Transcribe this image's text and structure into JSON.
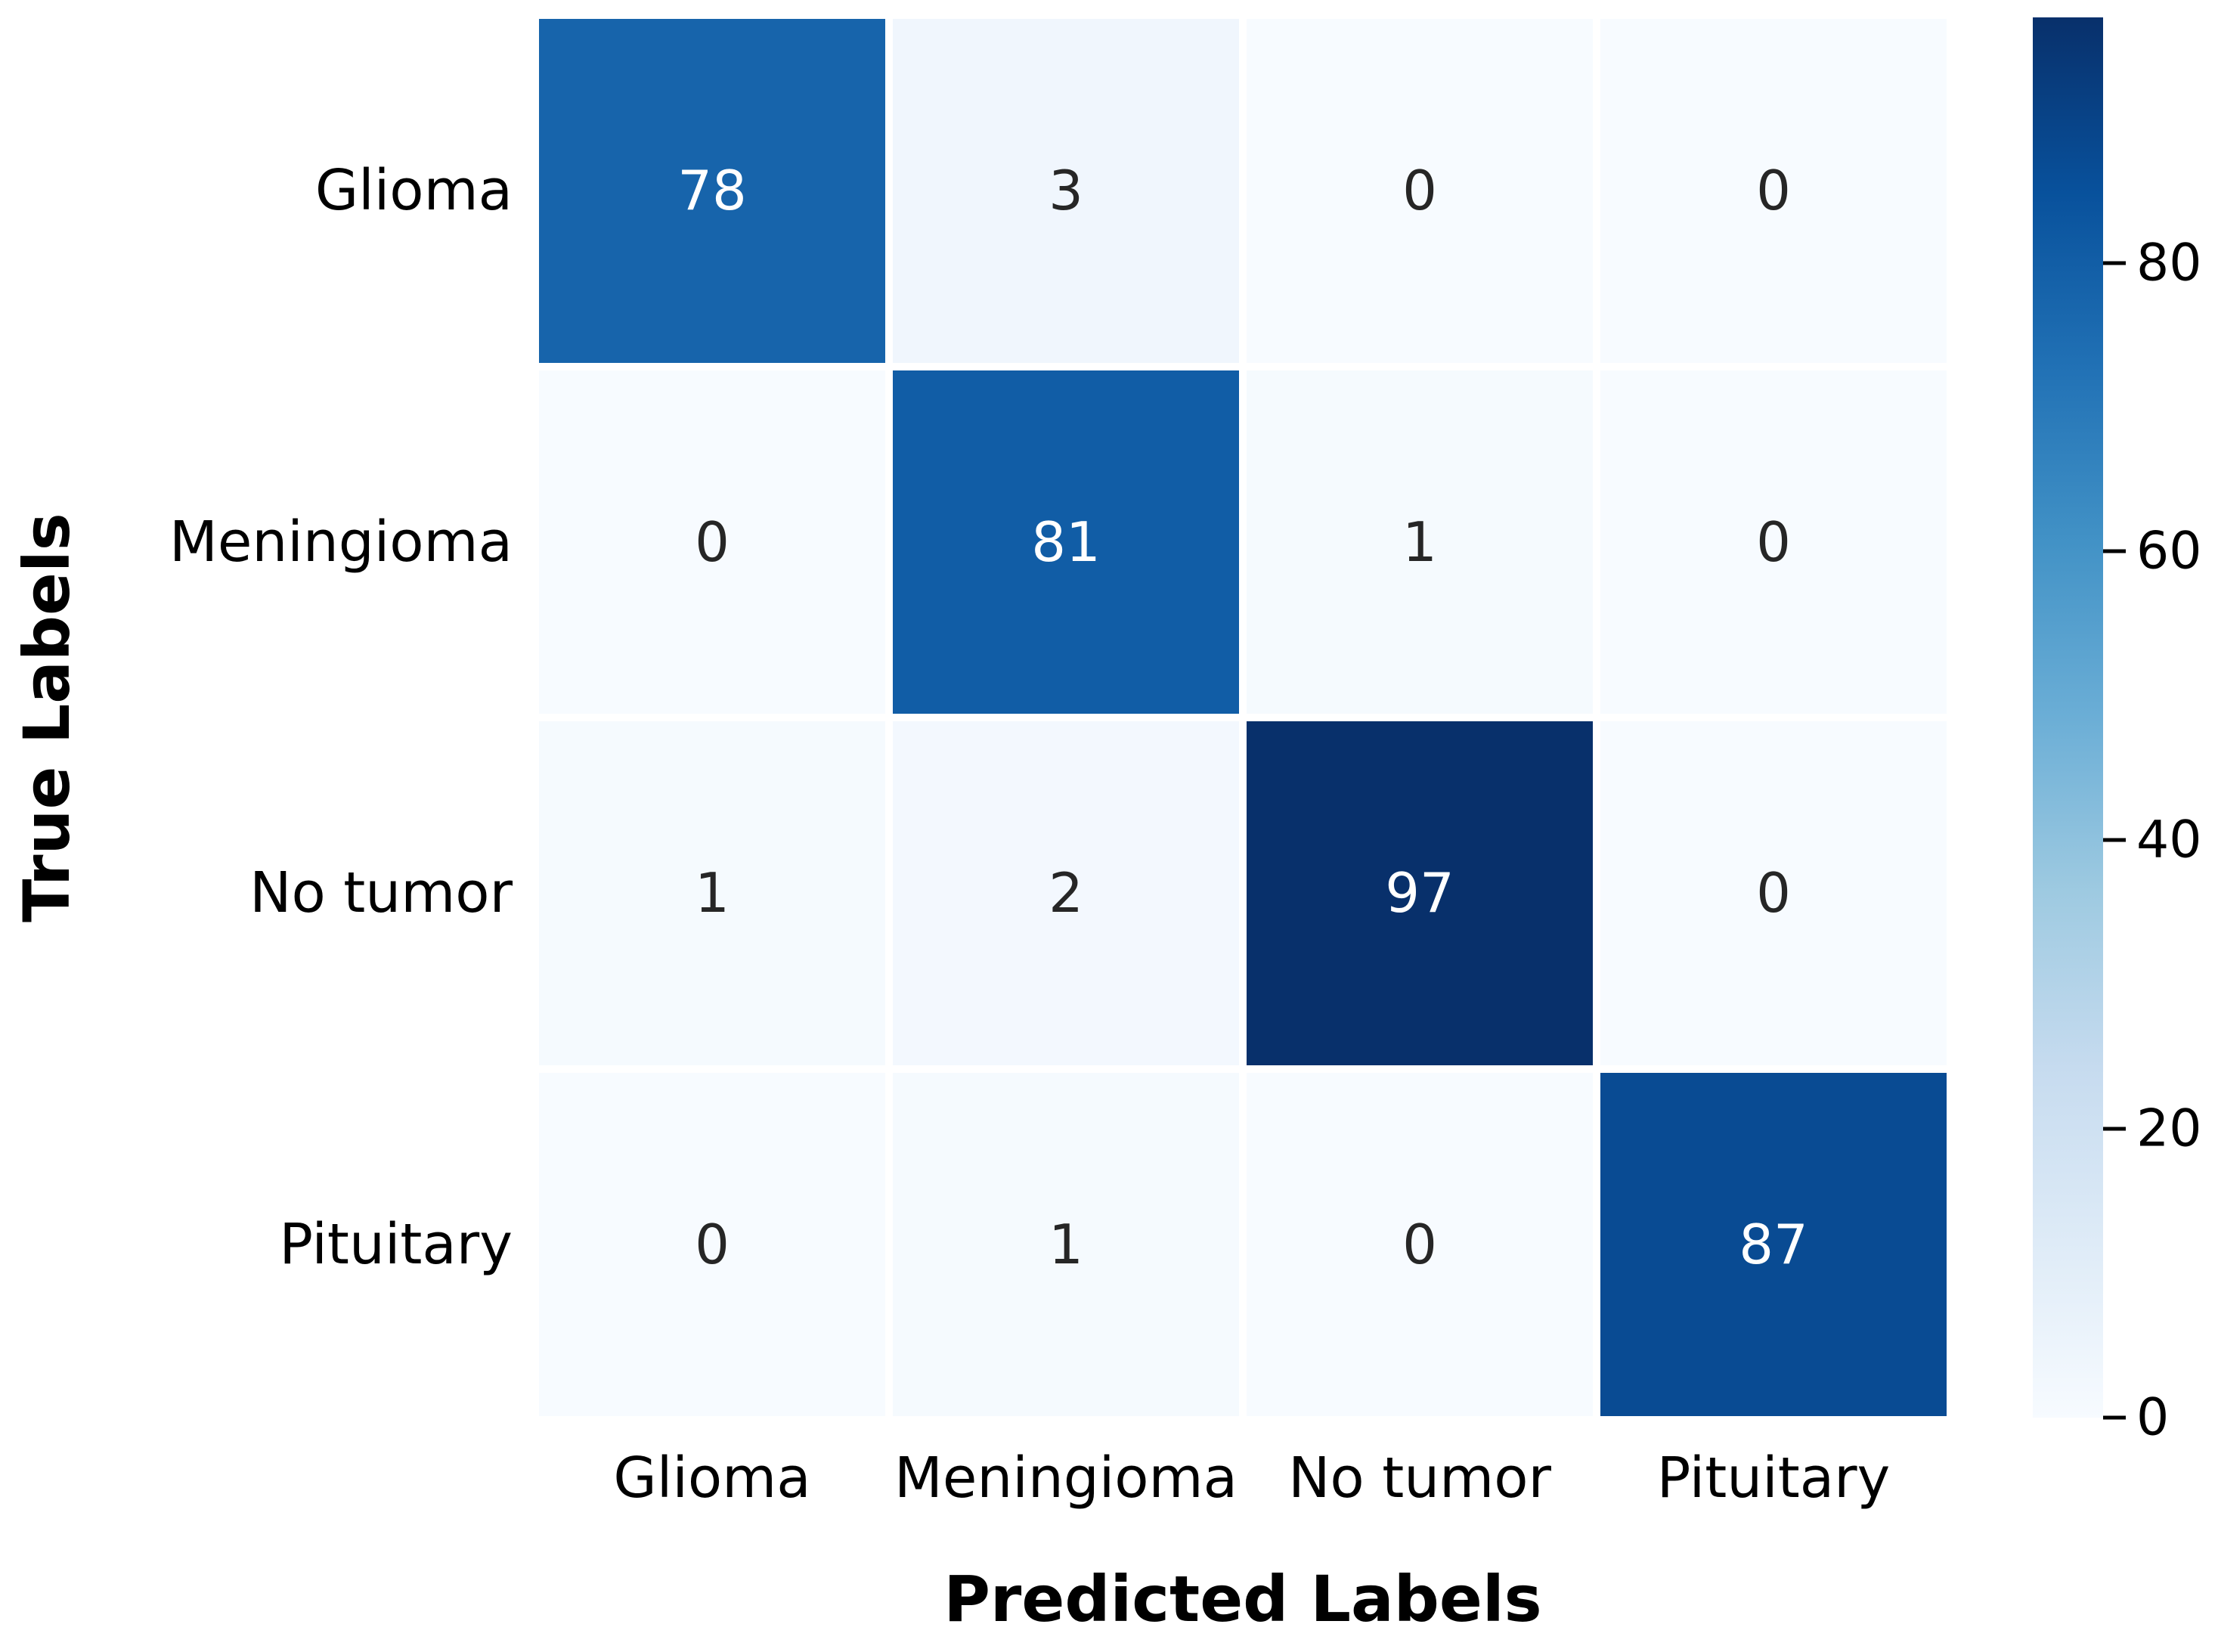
{
  "figure": {
    "background_color": "#ffffff",
    "text_color": "#000000"
  },
  "chart_data": {
    "type": "heatmap",
    "title": "",
    "xlabel": "Predicted Labels",
    "ylabel": "True Labels",
    "x_tick_labels": [
      "Glioma",
      "Meningioma",
      "No tumor",
      "Pituitary"
    ],
    "y_tick_labels": [
      "Glioma",
      "Meningioma",
      "No tumor",
      "Pituitary"
    ],
    "matrix": [
      [
        78,
        3,
        0,
        0
      ],
      [
        0,
        81,
        1,
        0
      ],
      [
        1,
        2,
        97,
        0
      ],
      [
        0,
        1,
        0,
        87
      ]
    ],
    "cell_colors": [
      [
        "#1764ab",
        "#f0f6fd",
        "#f7fbff",
        "#f7fbff"
      ],
      [
        "#f7fbff",
        "#115da6",
        "#f5fafe",
        "#f7fbff"
      ],
      [
        "#f5fafe",
        "#f3f8fe",
        "#08306b",
        "#f7fbff"
      ],
      [
        "#f7fbff",
        "#f5fafe",
        "#f7fbff",
        "#094b93"
      ]
    ],
    "annotation_color_on_dark": "#ffffff",
    "annotation_color_on_light": "#262626",
    "vmin": 0,
    "vmax": 97,
    "colormap": "Blues",
    "grid": false,
    "legend_position": "right",
    "colorbar": {
      "ticks": [
        0,
        20,
        40,
        60,
        80
      ],
      "gradient_top_to_bottom": [
        "#08306b",
        "#08519c",
        "#2171b5",
        "#4292c6",
        "#6baed6",
        "#9ecae1",
        "#c6dbef",
        "#deebf7",
        "#f7fbff"
      ]
    }
  }
}
